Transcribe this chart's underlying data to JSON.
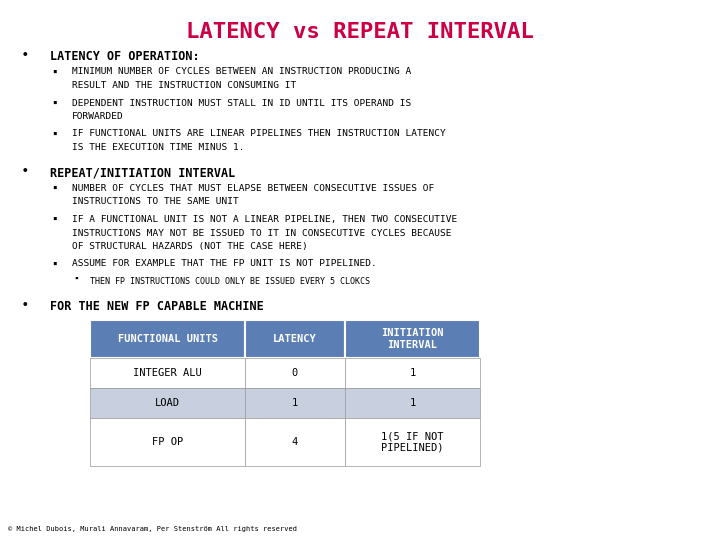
{
  "title": "LATENCY vs REPEAT INTERVAL",
  "title_color": "#CC0044",
  "background_color": "#FFFFFF",
  "font_family": "monospace",
  "bullet1_header": "LATENCY OF OPERATION:",
  "bullet1_items": [
    [
      "MINIMUM NUMBER OF CYCLES BETWEEN AN INSTRUCTION PRODUCING A",
      "RESULT AND THE INSTRUCTION CONSUMING IT"
    ],
    [
      "DEPENDENT INSTRUCTION MUST STALL IN ID UNTIL ITS OPERAND IS",
      "FORWARDED"
    ],
    [
      "IF FUNCTIONAL UNITS ARE LINEAR PIPELINES THEN INSTRUCTION LATENCY",
      "IS THE EXECUTION TIME MINUS 1."
    ]
  ],
  "bullet2_header": "REPEAT/INITIATION INTERVAL",
  "bullet2_items": [
    [
      "NUMBER OF CYCLES THAT MUST ELAPSE BETWEEN CONSECUTIVE ISSUES OF",
      "INSTRUCTIONS TO THE SAME UNIT"
    ],
    [
      "IF A FUNCTIONAL UNIT IS NOT A LINEAR PIPELINE, THEN TWO CONSECUTIVE",
      "INSTRUCTIONS MAY NOT BE ISSUED TO IT IN CONSECUTIVE CYCLES BECAUSE",
      "OF STRUCTURAL HAZARDS (NOT THE CASE HERE)"
    ],
    [
      "ASSUME FOR EXAMPLE THAT THE FP UNIT IS NOT PIPELINED."
    ]
  ],
  "bullet2_subsub": "THEN FP INSTRUCTIONS COULD ONLY BE ISSUED EVERY 5 CLOKCS",
  "bullet3_header": "FOR THE NEW FP CAPABLE MACHINE",
  "table_header": [
    "FUNCTIONAL UNITS",
    "LATENCY",
    "INITIATION\nINTERVAL"
  ],
  "table_rows": [
    [
      "INTEGER ALU",
      "0",
      "1"
    ],
    [
      "LOAD",
      "1",
      "1"
    ],
    [
      "FP OP",
      "4",
      "1(5 IF NOT\nPIPELINED)"
    ]
  ],
  "table_header_bg": "#5B7FB5",
  "table_row1_bg": "#FFFFFF",
  "table_row2_bg": "#C8D0E0",
  "table_header_color": "#FFFFFF",
  "table_row_color": "#000000",
  "footer": "© Michel Dubois, Murali Annavaram, Per Stenström All rights reserved"
}
